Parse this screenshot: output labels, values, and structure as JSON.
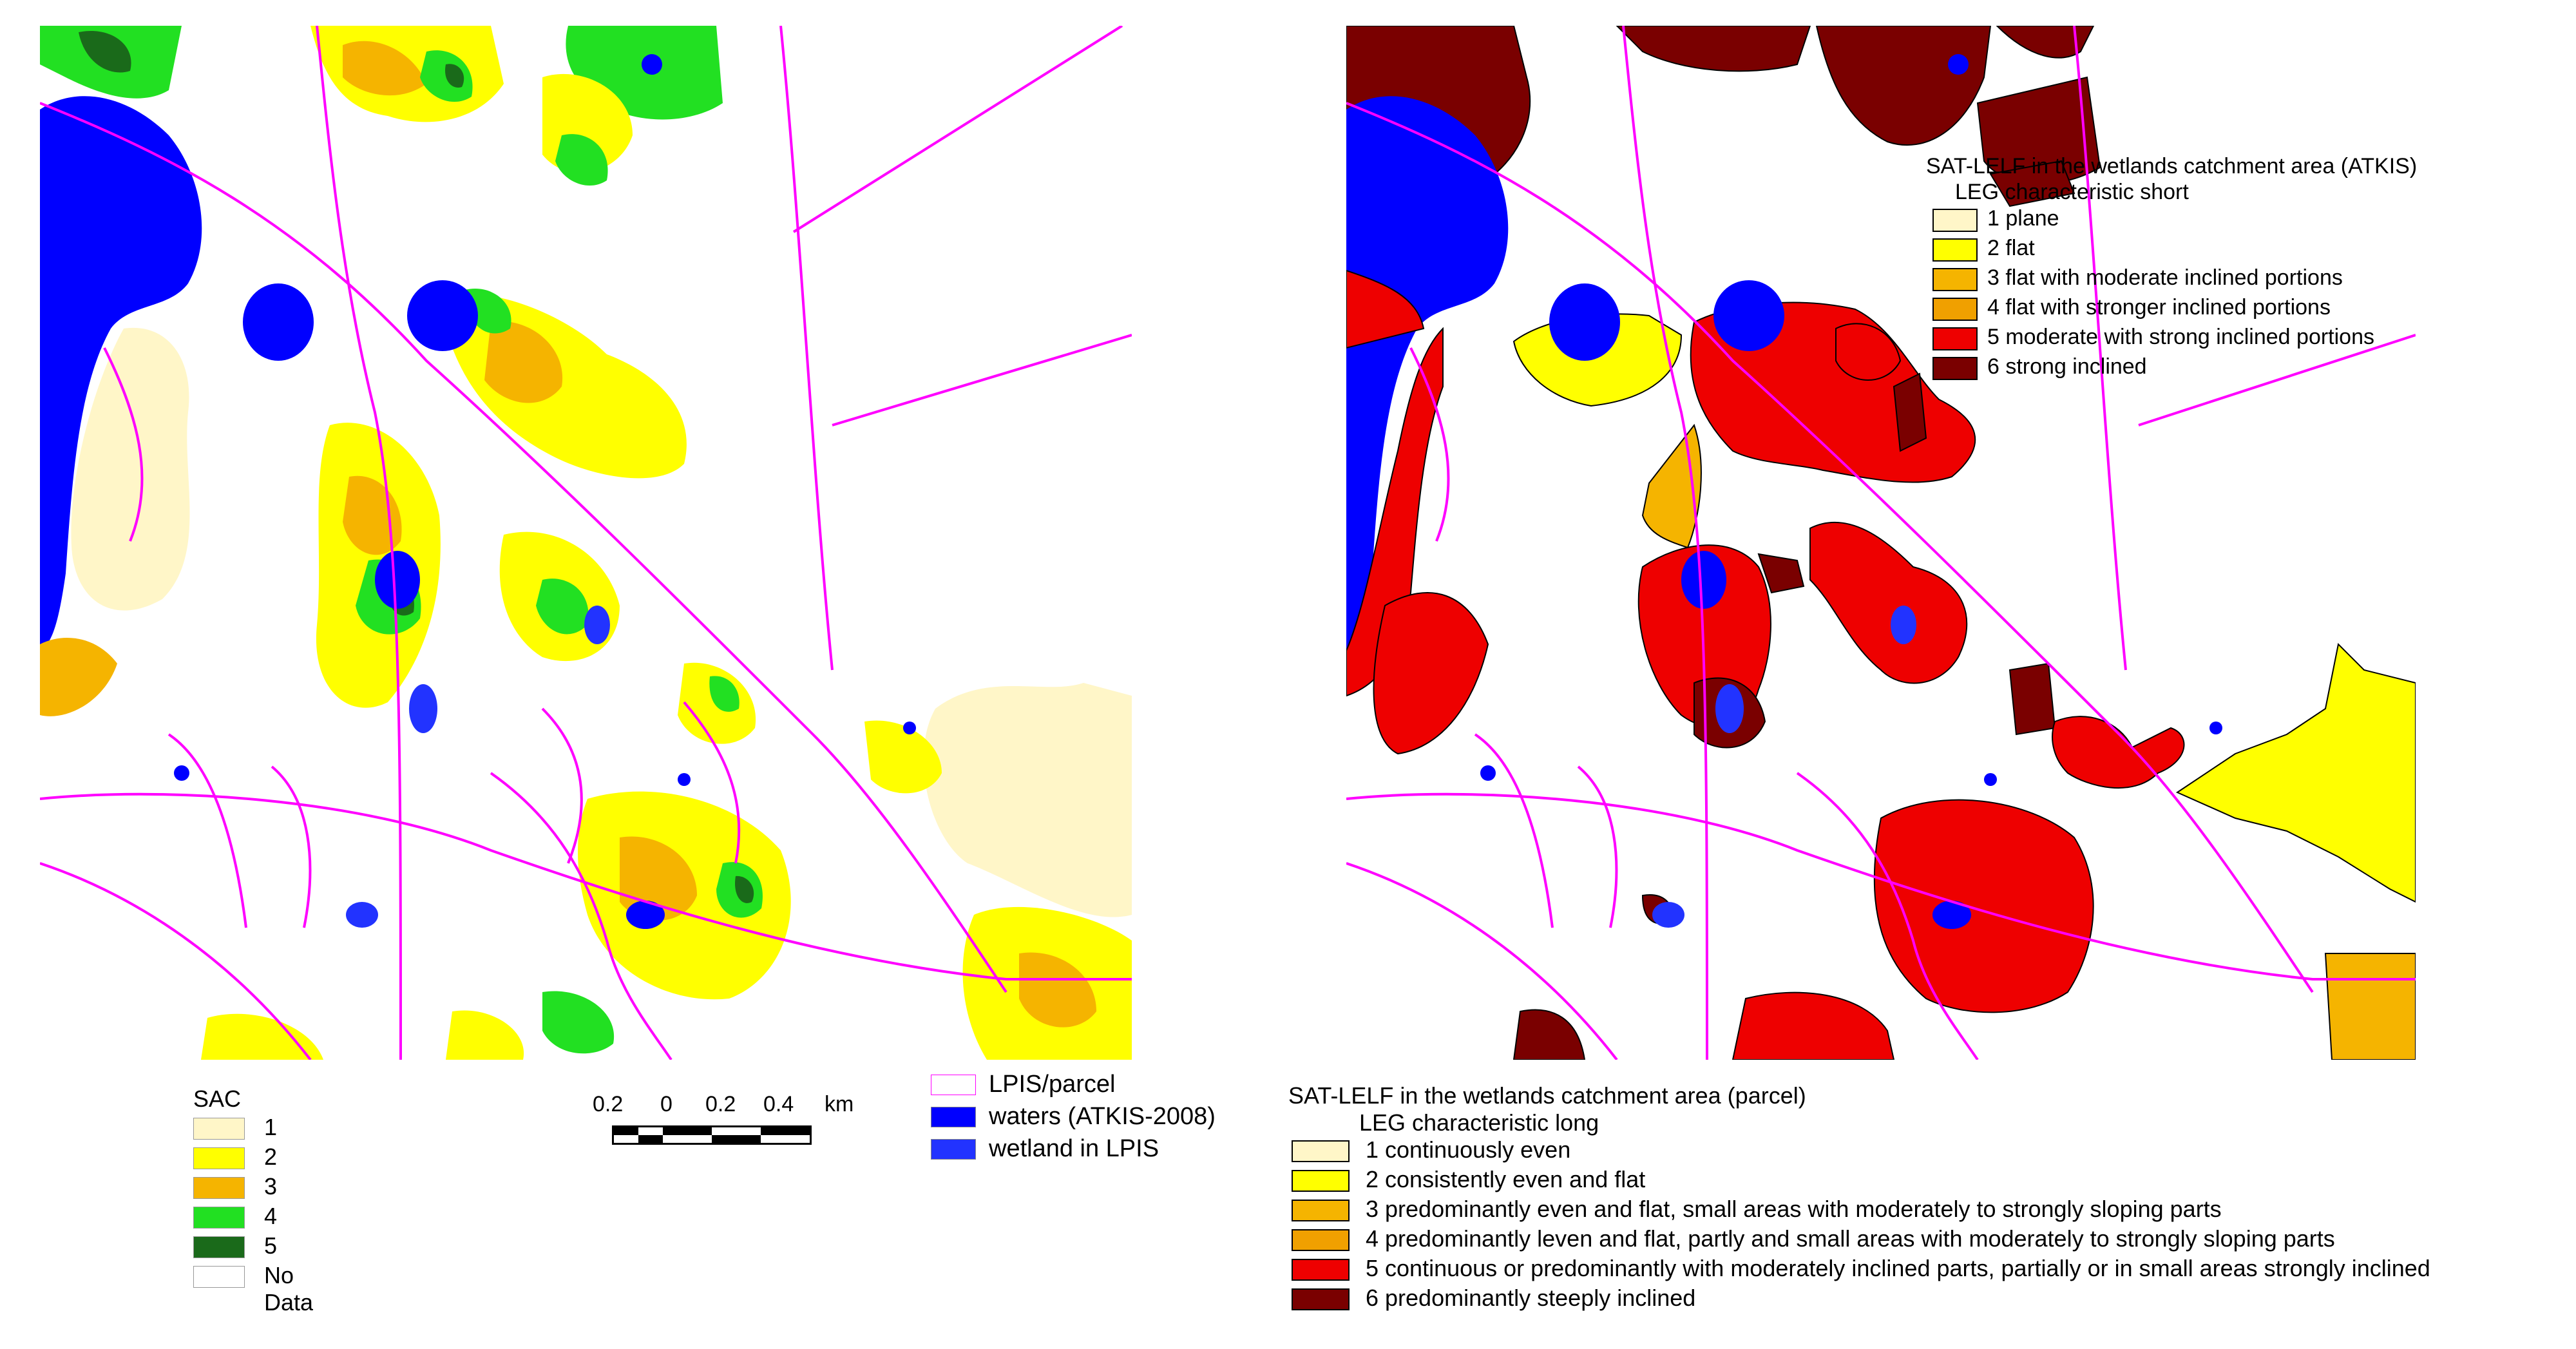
{
  "colors": {
    "sac_1": "#fff6c8",
    "sac_2": "#ffff00",
    "sac_3": "#f5b400",
    "sac_4": "#22e022",
    "sac_5": "#1a6a1a",
    "no_data": "#ffffff",
    "lelf_1": "#fff6c8",
    "lelf_2": "#ffff00",
    "lelf_3": "#f5b400",
    "lelf_4": "#f0a000",
    "lelf_5": "#ee0000",
    "lelf_6": "#7a0000",
    "lpis_parcel": "#ff00ff",
    "waters": "#0000ff",
    "wetland_lpis": "#2233ff"
  },
  "sac_legend": {
    "title": "SAC",
    "items": [
      {
        "label": "1",
        "color": "#fff6c8"
      },
      {
        "label": "2",
        "color": "#ffff00"
      },
      {
        "label": "3",
        "color": "#f5b400"
      },
      {
        "label": "4",
        "color": "#22e022"
      },
      {
        "label": "5",
        "color": "#1a6a1a"
      },
      {
        "label": "No Data",
        "color": "#ffffff"
      }
    ]
  },
  "scalebar": {
    "labels": [
      "0.2",
      "0",
      "0.2",
      "0.4"
    ],
    "unit": "km"
  },
  "water_legend": {
    "items": [
      {
        "label": "LPIS/parcel",
        "color": "#ffffff",
        "border": "#ff00ff"
      },
      {
        "label": "waters (ATKIS-2008)",
        "color": "#0000ff",
        "border": "#888888"
      },
      {
        "label": "wetland in LPIS",
        "color": "#2233ff",
        "border": "#888888"
      }
    ]
  },
  "parcel_legend": {
    "title": "SAT-LELF in the wetlands catchment area (parcel)",
    "subtitle": "LEG characteristic long",
    "items": [
      {
        "label": "1  continuously even",
        "color": "#fff6c8"
      },
      {
        "label": "2  consistently even and flat",
        "color": "#ffff00"
      },
      {
        "label": "3  predominantly even and flat, small areas with moderately to strongly sloping parts",
        "color": "#f5b400"
      },
      {
        "label": "4  predominantly leven and flat, partly and small areas with moderately to strongly sloping parts",
        "color": "#f0a000"
      },
      {
        "label": "5  continuous or predominantly with moderately inclined parts, partially or in small areas strongly inclined",
        "color": "#ee0000"
      },
      {
        "label": "6  predominantly steeply inclined",
        "color": "#7a0000"
      }
    ]
  },
  "atkis_legend": {
    "title": "SAT-LELF in the wetlands catchment area (ATKIS)",
    "subtitle": "LEG characteristic short",
    "items": [
      {
        "label": "1  plane",
        "color": "#fff6c8"
      },
      {
        "label": "2  flat",
        "color": "#ffff00"
      },
      {
        "label": "3  flat with moderate inclined portions",
        "color": "#f5b400"
      },
      {
        "label": "4  flat with stronger inclined portions",
        "color": "#f0a000"
      },
      {
        "label": "5  moderate with strong inclined portions",
        "color": "#ee0000"
      },
      {
        "label": "6  strong inclined",
        "color": "#7a0000"
      }
    ]
  }
}
